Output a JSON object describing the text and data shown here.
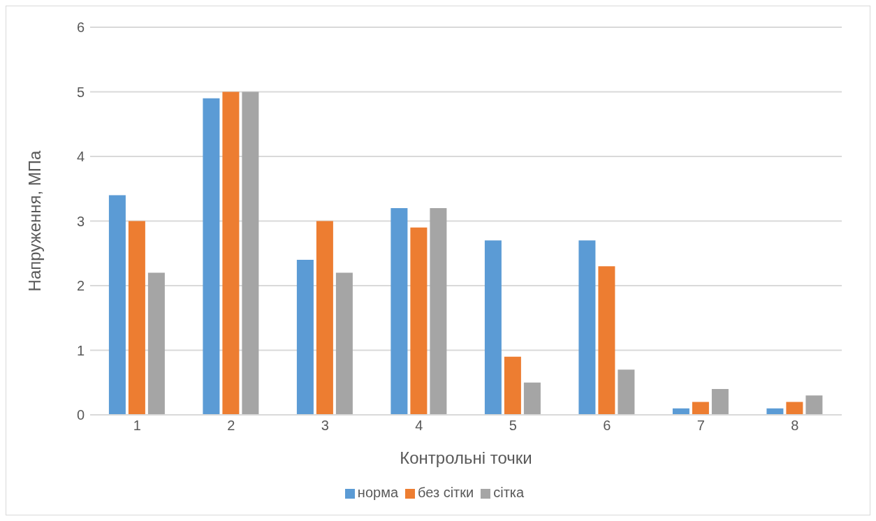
{
  "chart_data": {
    "type": "bar",
    "xlabel": "Контрольні точки",
    "ylabel": "Напруження, МПа",
    "categories": [
      "1",
      "2",
      "3",
      "4",
      "5",
      "6",
      "7",
      "8"
    ],
    "series": [
      {
        "name": "норма",
        "color": "#5b9bd5",
        "values": [
          3.4,
          4.9,
          2.4,
          3.2,
          2.7,
          2.7,
          0.1,
          0.1
        ]
      },
      {
        "name": "без сітки",
        "color": "#ed7d31",
        "values": [
          3.0,
          5.0,
          3.0,
          2.9,
          0.9,
          2.3,
          0.2,
          0.2
        ]
      },
      {
        "name": "сітка",
        "color": "#a5a5a5",
        "values": [
          2.2,
          5.0,
          2.2,
          3.2,
          0.5,
          0.7,
          0.4,
          0.3
        ]
      }
    ],
    "ylim": [
      0,
      6
    ],
    "yticks": [
      0,
      1,
      2,
      3,
      4,
      5,
      6
    ],
    "grid": "y",
    "legend": "bottom"
  }
}
